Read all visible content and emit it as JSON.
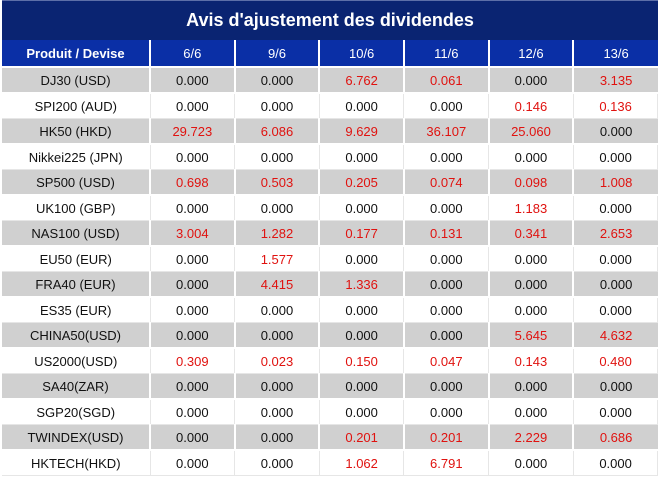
{
  "title": "Avis d'ajustement des dividendes",
  "table": {
    "headers": [
      "Produit / Devise",
      "6/6",
      "9/6",
      "10/6",
      "11/6",
      "12/6",
      "13/6"
    ],
    "rows": [
      {
        "product": "DJ30 (USD)",
        "values": [
          "0.000",
          "0.000",
          "6.762",
          "0.061",
          "0.000",
          "3.135"
        ]
      },
      {
        "product": "SPI200 (AUD)",
        "values": [
          "0.000",
          "0.000",
          "0.000",
          "0.000",
          "0.146",
          "0.136"
        ]
      },
      {
        "product": "HK50 (HKD)",
        "values": [
          "29.723",
          "6.086",
          "9.629",
          "36.107",
          "25.060",
          "0.000"
        ]
      },
      {
        "product": "Nikkei225 (JPN)",
        "values": [
          "0.000",
          "0.000",
          "0.000",
          "0.000",
          "0.000",
          "0.000"
        ]
      },
      {
        "product": "SP500 (USD)",
        "values": [
          "0.698",
          "0.503",
          "0.205",
          "0.074",
          "0.098",
          "1.008"
        ]
      },
      {
        "product": "UK100 (GBP)",
        "values": [
          "0.000",
          "0.000",
          "0.000",
          "0.000",
          "1.183",
          "0.000"
        ]
      },
      {
        "product": "NAS100 (USD)",
        "values": [
          "3.004",
          "1.282",
          "0.177",
          "0.131",
          "0.341",
          "2.653"
        ]
      },
      {
        "product": "EU50 (EUR)",
        "values": [
          "0.000",
          "1.577",
          "0.000",
          "0.000",
          "0.000",
          "0.000"
        ]
      },
      {
        "product": "FRA40 (EUR)",
        "values": [
          "0.000",
          "4.415",
          "1.336",
          "0.000",
          "0.000",
          "0.000"
        ]
      },
      {
        "product": "ES35 (EUR)",
        "values": [
          "0.000",
          "0.000",
          "0.000",
          "0.000",
          "0.000",
          "0.000"
        ]
      },
      {
        "product": "CHINA50(USD)",
        "values": [
          "0.000",
          "0.000",
          "0.000",
          "0.000",
          "5.645",
          "4.632"
        ]
      },
      {
        "product": "US2000(USD)",
        "values": [
          "0.309",
          "0.023",
          "0.150",
          "0.047",
          "0.143",
          "0.480"
        ]
      },
      {
        "product": "SA40(ZAR)",
        "values": [
          "0.000",
          "0.000",
          "0.000",
          "0.000",
          "0.000",
          "0.000"
        ]
      },
      {
        "product": "SGP20(SGD)",
        "values": [
          "0.000",
          "0.000",
          "0.000",
          "0.000",
          "0.000",
          "0.000"
        ]
      },
      {
        "product": "TWINDEX(USD)",
        "values": [
          "0.000",
          "0.000",
          "0.201",
          "0.201",
          "2.229",
          "0.686"
        ]
      },
      {
        "product": "HKTECH(HKD)",
        "values": [
          "0.000",
          "0.000",
          "1.062",
          "6.791",
          "0.000",
          "0.000"
        ]
      }
    ]
  },
  "colors": {
    "title_bg": "#0a2472",
    "header_bg": "#0a2fa6",
    "nonzero_value": "#e0120f",
    "zero_value": "#111111",
    "stripe": "#d0d0d0"
  }
}
